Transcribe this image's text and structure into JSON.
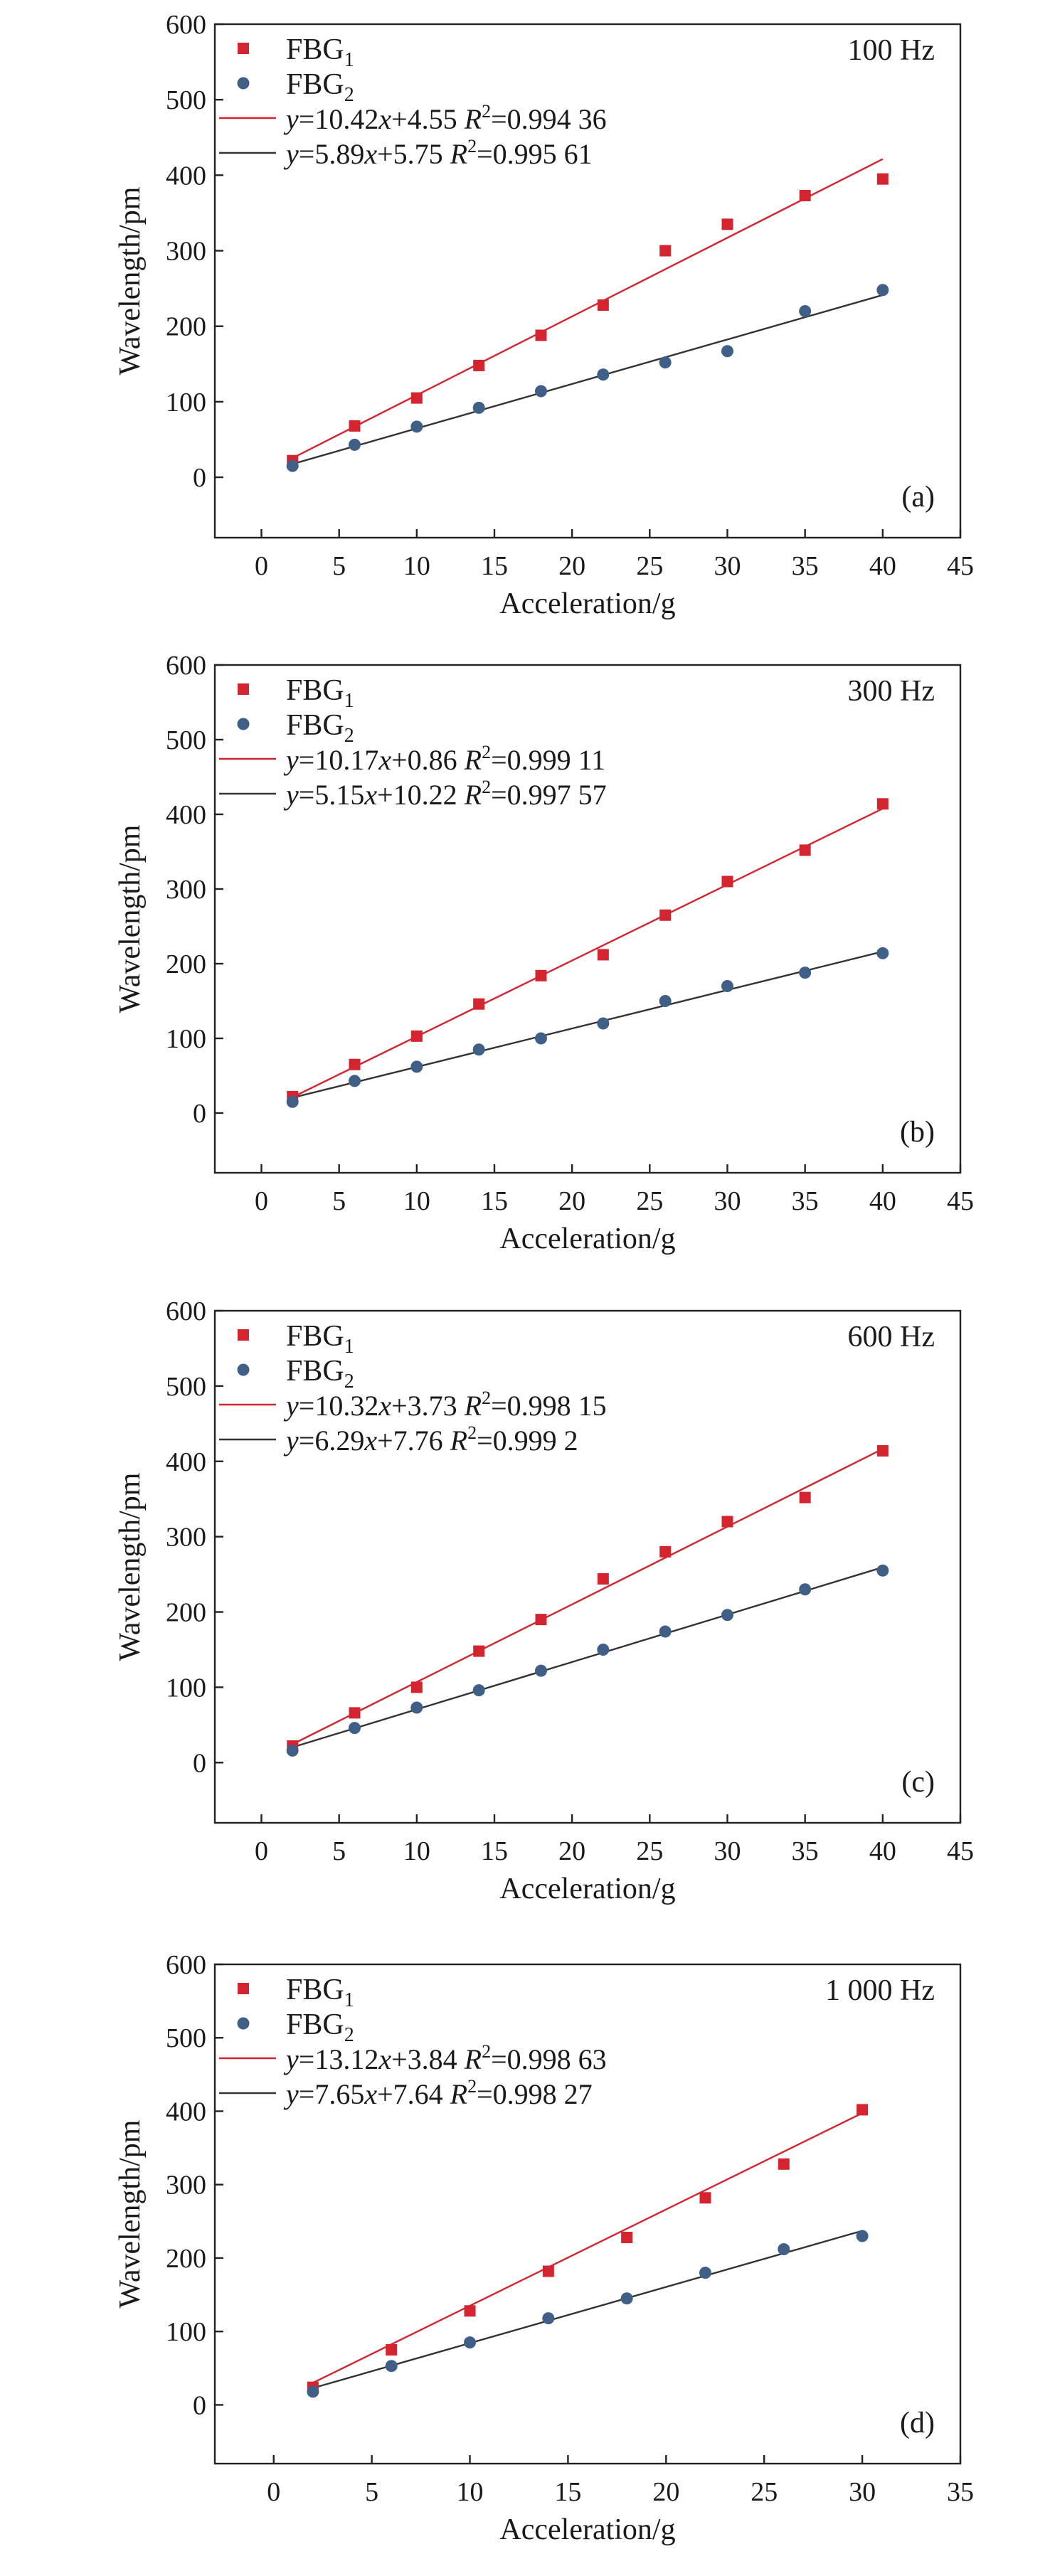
{
  "colors": {
    "fbg1": "#d3242f",
    "fbg2": "#3f5f86",
    "fit1_line": "#d3242f",
    "fit2_line": "#333333",
    "axis": "#222222"
  },
  "chart_data": [
    {
      "type": "scatter",
      "panel_label": "(a)",
      "frequency_label": "100 Hz",
      "xlabel": "Acceleration/g",
      "ylabel": "Wavelength/pm",
      "xlim": [
        -3,
        45
      ],
      "ylim": [
        -80,
        600
      ],
      "xticks": [
        0,
        5,
        10,
        15,
        20,
        25,
        30,
        35,
        40,
        45
      ],
      "yticks": [
        0,
        100,
        200,
        300,
        400,
        500,
        600
      ],
      "legend_position": "top-left",
      "series": [
        {
          "name": "FBG1",
          "name_main": "FBG",
          "name_sub": "1",
          "marker": "square",
          "x": [
            2,
            6,
            10,
            14,
            18,
            22,
            26,
            30,
            35,
            40
          ],
          "y": [
            22,
            68,
            105,
            148,
            188,
            228,
            300,
            335,
            373,
            395
          ]
        },
        {
          "name": "FBG2",
          "name_main": "FBG",
          "name_sub": "2",
          "marker": "circle",
          "x": [
            2,
            6,
            10,
            14,
            18,
            22,
            26,
            30,
            35,
            40
          ],
          "y": [
            15,
            43,
            67,
            92,
            114,
            136,
            152,
            167,
            220,
            248
          ]
        }
      ],
      "fits": [
        {
          "slope": 10.42,
          "intercept": 4.55,
          "xrange": [
            2,
            40
          ],
          "coef_text": "=10.42",
          "int_text": "+4.55 ",
          "r2_text": "=0.994 36"
        },
        {
          "slope": 5.89,
          "intercept": 5.75,
          "xrange": [
            2,
            40
          ],
          "coef_text": "=5.89",
          "int_text": "+5.75 ",
          "r2_text": "=0.995 61"
        }
      ]
    },
    {
      "type": "scatter",
      "panel_label": "(b)",
      "frequency_label": "300 Hz",
      "xlabel": "Acceleration/g",
      "ylabel": "Wavelength/pm",
      "xlim": [
        -3,
        45
      ],
      "ylim": [
        -80,
        600
      ],
      "xticks": [
        0,
        5,
        10,
        15,
        20,
        25,
        30,
        35,
        40,
        45
      ],
      "yticks": [
        0,
        100,
        200,
        300,
        400,
        500,
        600
      ],
      "legend_position": "top-left",
      "series": [
        {
          "name": "FBG1",
          "name_main": "FBG",
          "name_sub": "1",
          "marker": "square",
          "x": [
            2,
            6,
            10,
            14,
            18,
            22,
            26,
            30,
            35,
            40
          ],
          "y": [
            22,
            65,
            103,
            146,
            184,
            212,
            265,
            310,
            352,
            414
          ]
        },
        {
          "name": "FBG2",
          "name_main": "FBG",
          "name_sub": "2",
          "marker": "circle",
          "x": [
            2,
            6,
            10,
            14,
            18,
            22,
            26,
            30,
            35,
            40
          ],
          "y": [
            15,
            43,
            62,
            85,
            100,
            120,
            150,
            170,
            188,
            214
          ]
        }
      ],
      "fits": [
        {
          "slope": 10.17,
          "intercept": 0.86,
          "xrange": [
            2,
            40
          ],
          "coef_text": "=10.17",
          "int_text": "+0.86 ",
          "r2_text": "=0.999 11"
        },
        {
          "slope": 5.15,
          "intercept": 10.22,
          "xrange": [
            2,
            40
          ],
          "coef_text": "=5.15",
          "int_text": "+10.22 ",
          "r2_text": "=0.997 57"
        }
      ]
    },
    {
      "type": "scatter",
      "panel_label": "(c)",
      "frequency_label": "600 Hz",
      "xlabel": "Acceleration/g",
      "ylabel": "Wavelength/pm",
      "xlim": [
        -3,
        45
      ],
      "ylim": [
        -80,
        600
      ],
      "xticks": [
        0,
        5,
        10,
        15,
        20,
        25,
        30,
        35,
        40,
        45
      ],
      "yticks": [
        0,
        100,
        200,
        300,
        400,
        500,
        600
      ],
      "legend_position": "top-left",
      "series": [
        {
          "name": "FBG1",
          "name_main": "FBG",
          "name_sub": "1",
          "marker": "square",
          "x": [
            2,
            6,
            10,
            14,
            18,
            22,
            26,
            30,
            35,
            40
          ],
          "y": [
            22,
            66,
            100,
            148,
            190,
            244,
            280,
            320,
            352,
            414
          ]
        },
        {
          "name": "FBG2",
          "name_main": "FBG",
          "name_sub": "2",
          "marker": "circle",
          "x": [
            2,
            6,
            10,
            14,
            18,
            22,
            26,
            30,
            35,
            40
          ],
          "y": [
            16,
            46,
            73,
            96,
            122,
            150,
            174,
            196,
            230,
            255
          ]
        }
      ],
      "fits": [
        {
          "slope": 10.32,
          "intercept": 3.73,
          "xrange": [
            2,
            40
          ],
          "coef_text": "=10.32",
          "int_text": "+3.73 ",
          "r2_text": "=0.998 15"
        },
        {
          "slope": 6.29,
          "intercept": 7.76,
          "xrange": [
            2,
            40
          ],
          "coef_text": "=6.29",
          "int_text": "+7.76 ",
          "r2_text": "=0.999 2"
        }
      ]
    },
    {
      "type": "scatter",
      "panel_label": "(d)",
      "frequency_label": "1 000 Hz",
      "xlabel": "Acceleration/g",
      "ylabel": "Wavelength/pm",
      "xlim": [
        -3,
        35
      ],
      "ylim": [
        -80,
        600
      ],
      "xticks": [
        0,
        5,
        10,
        15,
        20,
        25,
        30,
        35
      ],
      "yticks": [
        0,
        100,
        200,
        300,
        400,
        500,
        600
      ],
      "legend_position": "top-left",
      "series": [
        {
          "name": "FBG1",
          "name_main": "FBG",
          "name_sub": "1",
          "marker": "square",
          "x": [
            2,
            6,
            10,
            14,
            18,
            22,
            26,
            30
          ],
          "y": [
            24,
            75,
            128,
            182,
            228,
            282,
            328,
            402
          ]
        },
        {
          "name": "FBG2",
          "name_main": "FBG",
          "name_sub": "2",
          "marker": "circle",
          "x": [
            2,
            6,
            10,
            14,
            18,
            22,
            26,
            30
          ],
          "y": [
            18,
            53,
            85,
            118,
            145,
            180,
            212,
            230
          ]
        }
      ],
      "fits": [
        {
          "slope": 13.12,
          "intercept": 3.84,
          "xrange": [
            2,
            30
          ],
          "coef_text": "=13.12",
          "int_text": "+3.84 ",
          "r2_text": "=0.998 63"
        },
        {
          "slope": 7.65,
          "intercept": 7.64,
          "xrange": [
            2,
            30
          ],
          "coef_text": "=7.65",
          "int_text": "+7.64 ",
          "r2_text": "=0.998 27"
        }
      ]
    }
  ]
}
